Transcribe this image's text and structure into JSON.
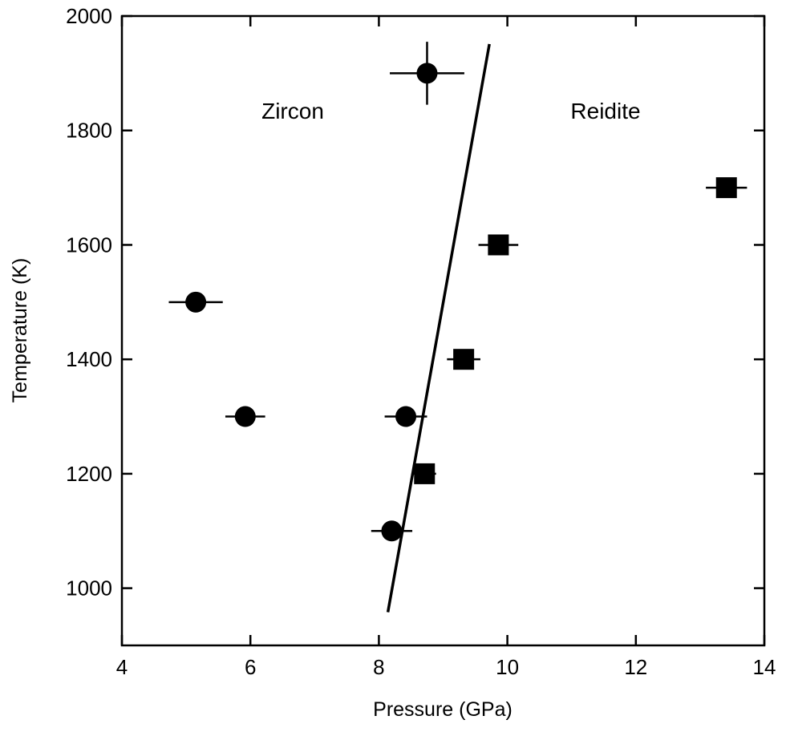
{
  "chart_data": {
    "type": "scatter",
    "xlabel": "Pressure (GPa)",
    "ylabel": "Temperature (K)",
    "xlim": [
      4,
      14
    ],
    "ylim": [
      900,
      2000
    ],
    "xticks": [
      4,
      6,
      8,
      10,
      12,
      14
    ],
    "yticks": [
      1000,
      1200,
      1400,
      1600,
      1800,
      2000
    ],
    "series": [
      {
        "name": "Zircon",
        "marker": "circle",
        "color": "#000000",
        "x": [
          8.75,
          5.15,
          5.92,
          8.42,
          8.2
        ],
        "y": [
          1900,
          1500,
          1300,
          1300,
          1100
        ],
        "xerr": [
          0.58,
          0.42,
          0.31,
          0.33,
          0.32
        ],
        "yerr": [
          55,
          null,
          null,
          null,
          null
        ]
      },
      {
        "name": "Reidite",
        "marker": "square",
        "color": "#000000",
        "x": [
          8.71,
          9.32,
          9.86,
          13.41
        ],
        "y": [
          1200,
          1400,
          1600,
          1700
        ],
        "xerr": [
          0.18,
          0.26,
          0.31,
          0.32
        ],
        "yerr": [
          null,
          null,
          null,
          null
        ]
      }
    ],
    "boundary": {
      "x": [
        8.14,
        9.72
      ],
      "y": [
        958,
        1951
      ]
    }
  }
}
